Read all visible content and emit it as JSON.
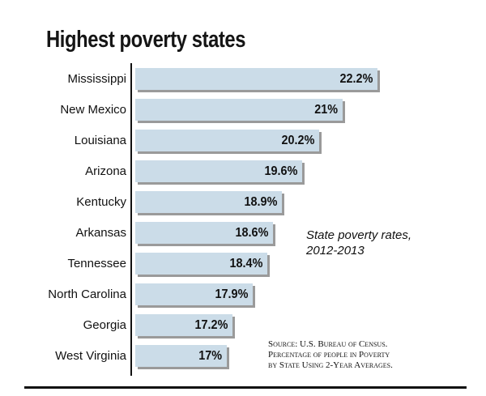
{
  "chart_data": {
    "type": "bar",
    "orientation": "horizontal",
    "title": "Highest poverty states",
    "categories": [
      "Mississippi",
      "New Mexico",
      "Louisiana",
      "Arizona",
      "Kentucky",
      "Arkansas",
      "Tennessee",
      "North Carolina",
      "Georgia",
      "West Virginia"
    ],
    "values": [
      22.2,
      21,
      20.2,
      19.6,
      18.9,
      18.6,
      18.4,
      17.9,
      17.2,
      17
    ],
    "data_labels": [
      "22.2%",
      "21%",
      "20.2%",
      "19.6%",
      "18.9%",
      "18.6%",
      "18.4%",
      "17.9%",
      "17.2%",
      "17%"
    ],
    "annotation": [
      "State poverty rates,",
      "2012-2013"
    ],
    "source": [
      "Source: U.S. Bureau of Census.",
      "Percentage of people in Poverty",
      "by State Using 2-Year Averages."
    ],
    "grid": false,
    "colors": {
      "bar": "#cbdce8",
      "shadow": "#9a9a9a",
      "text": "#111111"
    }
  }
}
